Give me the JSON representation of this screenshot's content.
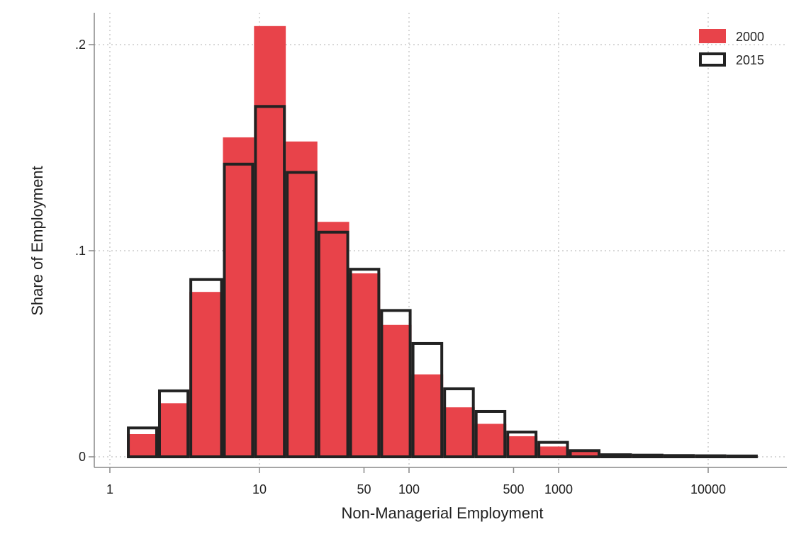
{
  "chart_data": {
    "type": "bar",
    "title": "",
    "xlabel": "Non-Managerial Employment",
    "ylabel": "Share of Employment",
    "x_scale": "log",
    "xlim": [
      1,
      30000
    ],
    "ylim": [
      0,
      0.22
    ],
    "grid": true,
    "legend_position": "top-right",
    "x_ticks": [
      {
        "value": 1,
        "label": "1"
      },
      {
        "value": 10,
        "label": "10"
      },
      {
        "value": 50,
        "label": "50"
      },
      {
        "value": 100,
        "label": "100"
      },
      {
        "value": 500,
        "label": "500"
      },
      {
        "value": 1000,
        "label": "1000"
      },
      {
        "value": 10000,
        "label": "10000"
      }
    ],
    "y_ticks": [
      {
        "value": 0,
        "label": "0"
      },
      {
        "value": 0.1,
        "label": ".1"
      },
      {
        "value": 0.2,
        "label": ".2"
      }
    ],
    "bin_edges": [
      1.3,
      2.1,
      3.4,
      5.7,
      9.2,
      15.0,
      24.4,
      39.8,
      64.2,
      104.0,
      169.2,
      275.0,
      447.0,
      722.0,
      1172.0,
      1905.0,
      3090.0,
      5025.0,
      8150.0,
      13220.0,
      21450.0
    ],
    "series": [
      {
        "name": "2000",
        "color": "#e8434a",
        "style": "filled",
        "values": [
          0.011,
          0.026,
          0.08,
          0.155,
          0.209,
          0.153,
          0.114,
          0.089,
          0.064,
          0.04,
          0.024,
          0.016,
          0.01,
          0.005,
          0.003,
          0.001,
          0.0006,
          0.0004,
          0.0003,
          0.0002
        ]
      },
      {
        "name": "2015",
        "color": "#222222",
        "style": "outline",
        "values": [
          0.014,
          0.032,
          0.086,
          0.142,
          0.17,
          0.138,
          0.109,
          0.091,
          0.071,
          0.055,
          0.033,
          0.022,
          0.012,
          0.007,
          0.003,
          0.001,
          0.0008,
          0.0006,
          0.0005,
          0.0004
        ]
      }
    ]
  }
}
